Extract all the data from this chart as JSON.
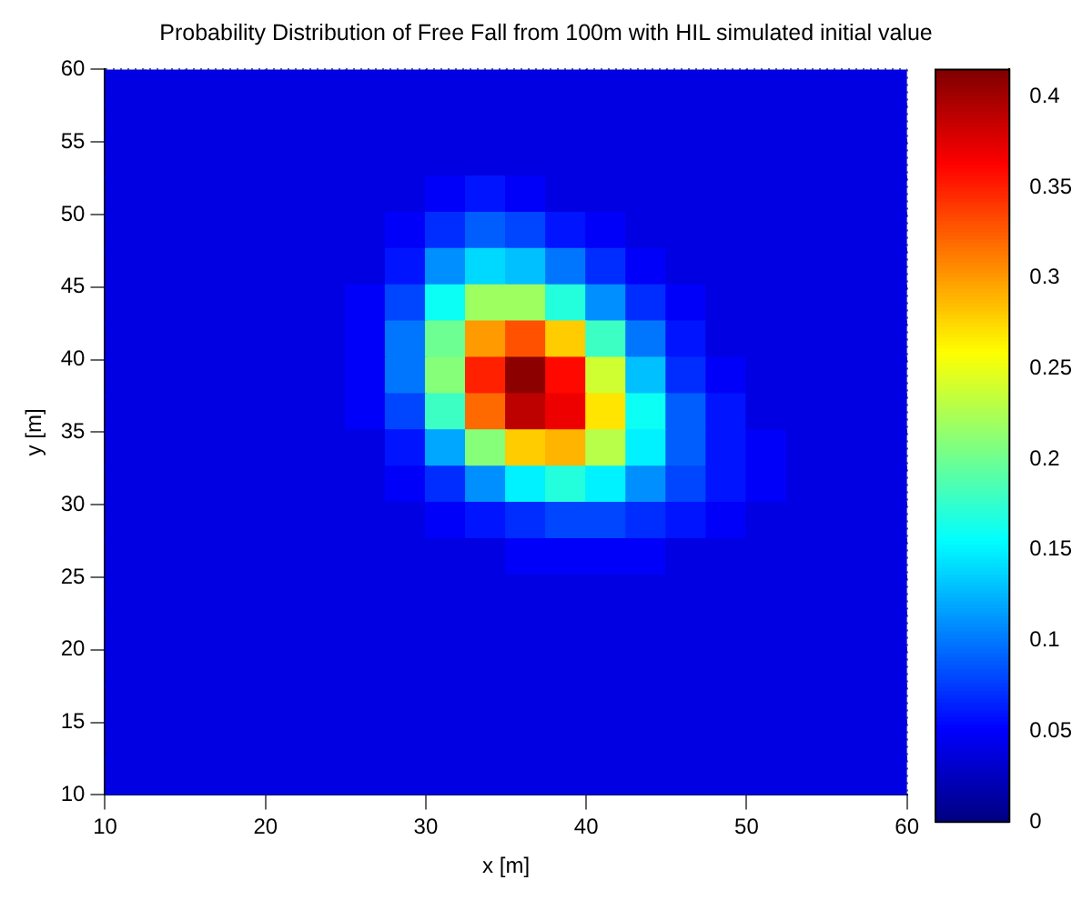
{
  "chart_data": {
    "type": "scatter",
    "title": "Probability Distribution of Free Fall from 100m with HIL simulated initial value",
    "xlabel": "x [m]",
    "ylabel": "y [m]",
    "marker": "square",
    "xlim": [
      10,
      60
    ],
    "xticks": [
      10,
      20,
      30,
      40,
      50,
      60
    ],
    "ylim": [
      10,
      60
    ],
    "yticks": [
      10,
      15,
      20,
      25,
      30,
      35,
      40,
      45,
      50,
      55,
      60
    ],
    "grid": true,
    "clim": [
      0,
      0.415
    ],
    "cticks": [
      0,
      0.05,
      0.1,
      0.15,
      0.2,
      0.25,
      0.3,
      0.35,
      0.4
    ],
    "x": [
      11.25,
      13.75,
      16.25,
      18.75,
      21.25,
      23.75,
      26.25,
      28.75,
      31.25,
      33.75,
      36.25,
      38.75,
      41.25,
      43.75,
      46.25,
      48.75,
      51.25,
      53.75,
      56.25,
      58.75,
      11.25,
      13.75,
      16.25,
      18.75,
      21.25,
      23.75,
      26.25,
      28.75,
      31.25,
      33.75,
      36.25,
      38.75,
      41.25,
      43.75,
      46.25,
      48.75,
      51.25,
      53.75,
      56.25,
      58.75,
      11.25,
      13.75,
      16.25,
      18.75,
      21.25,
      23.75,
      26.25,
      28.75,
      31.25,
      33.75,
      36.25,
      38.75,
      41.25,
      43.75,
      46.25,
      48.75,
      51.25,
      53.75,
      56.25,
      58.75,
      11.25,
      13.75,
      16.25,
      18.75,
      21.25,
      23.75,
      26.25,
      28.75,
      31.25,
      33.75,
      36.25,
      38.75,
      41.25,
      43.75,
      46.25,
      48.75,
      51.25,
      53.75,
      56.25,
      58.75,
      11.25,
      13.75,
      16.25,
      18.75,
      21.25,
      23.75,
      26.25,
      28.75,
      31.25,
      33.75,
      36.25,
      38.75,
      41.25,
      43.75,
      46.25,
      48.75,
      51.25,
      53.75,
      56.25,
      58.75,
      11.25,
      13.75,
      16.25,
      18.75,
      21.25,
      23.75,
      26.25,
      28.75,
      31.25,
      33.75,
      36.25,
      38.75,
      41.25,
      43.75,
      46.25,
      48.75,
      51.25,
      53.75,
      56.25,
      58.75,
      11.25,
      13.75,
      16.25,
      18.75,
      21.25,
      23.75,
      26.25,
      28.75,
      31.25,
      33.75,
      36.25,
      38.75,
      41.25,
      43.75,
      46.25,
      48.75,
      51.25,
      53.75,
      56.25,
      58.75,
      11.25,
      13.75,
      16.25,
      18.75,
      21.25,
      23.75,
      26.25,
      28.75,
      31.25,
      33.75,
      36.25,
      38.75,
      41.25,
      43.75,
      46.25,
      48.75,
      51.25,
      53.75,
      56.25,
      58.75,
      11.25,
      13.75,
      16.25,
      18.75,
      21.25,
      23.75,
      26.25,
      28.75,
      31.25,
      33.75,
      36.25,
      38.75,
      41.25,
      43.75,
      46.25,
      48.75,
      51.25,
      53.75,
      56.25,
      58.75,
      11.25,
      13.75,
      16.25,
      18.75,
      21.25,
      23.75,
      26.25,
      28.75,
      31.25,
      33.75,
      36.25,
      38.75,
      41.25,
      43.75,
      46.25,
      48.75,
      51.25,
      53.75,
      56.25,
      58.75,
      11.25,
      13.75,
      16.25,
      18.75,
      21.25,
      23.75,
      26.25,
      28.75,
      31.25,
      33.75,
      36.25,
      38.75,
      41.25,
      43.75,
      46.25,
      48.75,
      51.25,
      53.75,
      56.25,
      58.75,
      11.25,
      13.75,
      16.25,
      18.75,
      21.25,
      23.75,
      26.25,
      28.75,
      31.25,
      33.75,
      36.25,
      38.75,
      41.25,
      43.75,
      46.25,
      48.75,
      51.25,
      53.75,
      56.25,
      58.75,
      11.25,
      13.75,
      16.25,
      18.75,
      21.25,
      23.75,
      26.25,
      28.75,
      31.25,
      33.75,
      36.25,
      38.75,
      41.25,
      43.75,
      46.25,
      48.75,
      51.25,
      53.75,
      56.25,
      58.75,
      11.25,
      13.75,
      16.25,
      18.75,
      21.25,
      23.75,
      26.25,
      28.75,
      31.25,
      33.75,
      36.25,
      38.75,
      41.25,
      43.75,
      46.25,
      48.75,
      51.25,
      53.75,
      56.25,
      58.75,
      11.25,
      13.75,
      16.25,
      18.75,
      21.25,
      23.75,
      26.25,
      28.75,
      31.25,
      33.75,
      36.25,
      38.75,
      41.25,
      43.75,
      46.25,
      48.75,
      51.25,
      53.75,
      56.25,
      58.75,
      11.25,
      13.75,
      16.25,
      18.75,
      21.25,
      23.75,
      26.25,
      28.75,
      31.25,
      33.75,
      36.25,
      38.75,
      41.25,
      43.75,
      46.25,
      48.75,
      51.25,
      53.75,
      56.25,
      58.75,
      11.25,
      13.75,
      16.25,
      18.75,
      21.25,
      23.75,
      26.25,
      28.75,
      31.25,
      33.75,
      36.25,
      38.75,
      41.25,
      43.75,
      46.25,
      48.75,
      51.25,
      53.75,
      56.25,
      58.75,
      11.25,
      13.75,
      16.25,
      18.75,
      21.25,
      23.75,
      26.25,
      28.75,
      31.25,
      33.75,
      36.25,
      38.75,
      41.25,
      43.75,
      46.25,
      48.75,
      51.25,
      53.75,
      56.25,
      58.75,
      11.25,
      13.75,
      16.25,
      18.75,
      21.25,
      23.75,
      26.25,
      28.75,
      31.25,
      33.75,
      36.25,
      38.75,
      41.25,
      43.75,
      46.25,
      48.75,
      51.25,
      53.75,
      56.25,
      58.75,
      11.25,
      13.75,
      16.25,
      18.75,
      21.25,
      23.75,
      26.25,
      28.75,
      31.25,
      33.75,
      36.25,
      38.75,
      41.25,
      43.75,
      46.25,
      48.75,
      51.25,
      53.75,
      56.25,
      58.75
    ],
    "values": [
      58.75,
      58.75,
      58.75,
      58.75,
      58.75,
      58.75,
      58.75,
      58.75,
      58.75,
      58.75,
      58.75,
      58.75,
      58.75,
      58.75,
      58.75,
      58.75,
      58.75,
      58.75,
      58.75,
      58.75,
      56.25,
      56.25,
      56.25,
      56.25,
      56.25,
      56.25,
      56.25,
      56.25,
      56.25,
      56.25,
      56.25,
      56.25,
      56.25,
      56.25,
      56.25,
      56.25,
      56.25,
      56.25,
      56.25,
      56.25,
      53.75,
      53.75,
      53.75,
      53.75,
      53.75,
      53.75,
      53.75,
      53.75,
      53.75,
      53.75,
      53.75,
      53.75,
      53.75,
      53.75,
      53.75,
      53.75,
      53.75,
      53.75,
      53.75,
      53.75,
      51.25,
      51.25,
      51.25,
      51.25,
      51.25,
      51.25,
      51.25,
      51.25,
      51.25,
      51.25,
      51.25,
      51.25,
      51.25,
      51.25,
      51.25,
      51.25,
      51.25,
      51.25,
      51.25,
      51.25,
      48.75,
      48.75,
      48.75,
      48.75,
      48.75,
      48.75,
      48.75,
      48.75,
      48.75,
      48.75,
      48.75,
      48.75,
      48.75,
      48.75,
      48.75,
      48.75,
      48.75,
      48.75,
      48.75,
      48.75,
      46.25,
      46.25,
      46.25,
      46.25,
      46.25,
      46.25,
      46.25,
      46.25,
      46.25,
      46.25,
      46.25,
      46.25,
      46.25,
      46.25,
      46.25,
      46.25,
      46.25,
      46.25,
      46.25,
      46.25,
      43.75,
      43.75,
      43.75,
      43.75,
      43.75,
      43.75,
      43.75,
      43.75,
      43.75,
      43.75,
      43.75,
      43.75,
      43.75,
      43.75,
      43.75,
      43.75,
      43.75,
      43.75,
      43.75,
      43.75,
      41.25,
      41.25,
      41.25,
      41.25,
      41.25,
      41.25,
      41.25,
      41.25,
      41.25,
      41.25,
      41.25,
      41.25,
      41.25,
      41.25,
      41.25,
      41.25,
      41.25,
      41.25,
      41.25,
      41.25,
      38.75,
      38.75,
      38.75,
      38.75,
      38.75,
      38.75,
      38.75,
      38.75,
      38.75,
      38.75,
      38.75,
      38.75,
      38.75,
      38.75,
      38.75,
      38.75,
      38.75,
      38.75,
      38.75,
      38.75,
      36.25,
      36.25,
      36.25,
      36.25,
      36.25,
      36.25,
      36.25,
      36.25,
      36.25,
      36.25,
      36.25,
      36.25,
      36.25,
      36.25,
      36.25,
      36.25,
      36.25,
      36.25,
      36.25,
      36.25,
      33.75,
      33.75,
      33.75,
      33.75,
      33.75,
      33.75,
      33.75,
      33.75,
      33.75,
      33.75,
      33.75,
      33.75,
      33.75,
      33.75,
      33.75,
      33.75,
      33.75,
      33.75,
      33.75,
      33.75,
      31.25,
      31.25,
      31.25,
      31.25,
      31.25,
      31.25,
      31.25,
      31.25,
      31.25,
      31.25,
      31.25,
      31.25,
      31.25,
      31.25,
      31.25,
      31.25,
      31.25,
      31.25,
      31.25,
      31.25,
      28.75,
      28.75,
      28.75,
      28.75,
      28.75,
      28.75,
      28.75,
      28.75,
      28.75,
      28.75,
      28.75,
      28.75,
      28.75,
      28.75,
      28.75,
      28.75,
      28.75,
      28.75,
      28.75,
      28.75,
      26.25,
      26.25,
      26.25,
      26.25,
      26.25,
      26.25,
      26.25,
      26.25,
      26.25,
      26.25,
      26.25,
      26.25,
      26.25,
      26.25,
      26.25,
      26.25,
      26.25,
      26.25,
      26.25,
      26.25,
      23.75,
      23.75,
      23.75,
      23.75,
      23.75,
      23.75,
      23.75,
      23.75,
      23.75,
      23.75,
      23.75,
      23.75,
      23.75,
      23.75,
      23.75,
      23.75,
      23.75,
      23.75,
      23.75,
      23.75,
      21.25,
      21.25,
      21.25,
      21.25,
      21.25,
      21.25,
      21.25,
      21.25,
      21.25,
      21.25,
      21.25,
      21.25,
      21.25,
      21.25,
      21.25,
      21.25,
      21.25,
      21.25,
      21.25,
      21.25,
      18.75,
      18.75,
      18.75,
      18.75,
      18.75,
      18.75,
      18.75,
      18.75,
      18.75,
      18.75,
      18.75,
      18.75,
      18.75,
      18.75,
      18.75,
      18.75,
      18.75,
      18.75,
      18.75,
      18.75,
      16.25,
      16.25,
      16.25,
      16.25,
      16.25,
      16.25,
      16.25,
      16.25,
      16.25,
      16.25,
      16.25,
      16.25,
      16.25,
      16.25,
      16.25,
      16.25,
      16.25,
      16.25,
      16.25,
      16.25,
      13.75,
      13.75,
      13.75,
      13.75,
      13.75,
      13.75,
      13.75,
      13.75,
      13.75,
      13.75,
      13.75,
      13.75,
      13.75,
      13.75,
      13.75,
      13.75,
      13.75,
      13.75,
      13.75,
      13.75,
      11.25,
      11.25,
      11.25,
      11.25,
      11.25,
      11.25,
      11.25,
      11.25,
      11.25,
      11.25,
      11.25,
      11.25,
      11.25,
      11.25,
      11.25,
      11.25,
      11.25,
      11.25,
      11.25,
      11.25
    ],
    "cvalues": [
      0.04,
      0.04,
      0.04,
      0.04,
      0.04,
      0.04,
      0.04,
      0.04,
      0.04,
      0.04,
      0.04,
      0.04,
      0.04,
      0.04,
      0.04,
      0.04,
      0.04,
      0.04,
      0.04,
      0.04,
      0.04,
      0.04,
      0.04,
      0.04,
      0.04,
      0.04,
      0.04,
      0.04,
      0.04,
      0.04,
      0.04,
      0.04,
      0.04,
      0.04,
      0.04,
      0.04,
      0.04,
      0.04,
      0.04,
      0.04,
      0.04,
      0.04,
      0.04,
      0.04,
      0.04,
      0.04,
      0.04,
      0.04,
      0.04,
      0.04,
      0.04,
      0.04,
      0.04,
      0.04,
      0.04,
      0.04,
      0.04,
      0.04,
      0.04,
      0.04,
      0.04,
      0.04,
      0.04,
      0.04,
      0.04,
      0.04,
      0.04,
      0.04,
      0.05,
      0.06,
      0.05,
      0.04,
      0.04,
      0.04,
      0.04,
      0.04,
      0.04,
      0.04,
      0.04,
      0.04,
      0.04,
      0.04,
      0.04,
      0.04,
      0.04,
      0.04,
      0.04,
      0.05,
      0.07,
      0.09,
      0.08,
      0.06,
      0.05,
      0.04,
      0.04,
      0.04,
      0.04,
      0.04,
      0.04,
      0.04,
      0.04,
      0.04,
      0.04,
      0.04,
      0.04,
      0.04,
      0.04,
      0.06,
      0.11,
      0.14,
      0.13,
      0.1,
      0.07,
      0.05,
      0.04,
      0.04,
      0.04,
      0.04,
      0.04,
      0.04,
      0.04,
      0.04,
      0.04,
      0.04,
      0.04,
      0.04,
      0.05,
      0.08,
      0.16,
      0.22,
      0.22,
      0.17,
      0.11,
      0.07,
      0.05,
      0.04,
      0.04,
      0.04,
      0.04,
      0.04,
      0.04,
      0.04,
      0.04,
      0.04,
      0.04,
      0.04,
      0.05,
      0.1,
      0.2,
      0.3,
      0.33,
      0.28,
      0.18,
      0.1,
      0.06,
      0.04,
      0.04,
      0.04,
      0.04,
      0.04,
      0.04,
      0.04,
      0.04,
      0.04,
      0.04,
      0.04,
      0.05,
      0.1,
      0.21,
      0.35,
      0.41,
      0.36,
      0.24,
      0.13,
      0.07,
      0.05,
      0.04,
      0.04,
      0.04,
      0.04,
      0.04,
      0.04,
      0.04,
      0.04,
      0.04,
      0.04,
      0.05,
      0.08,
      0.18,
      0.32,
      0.39,
      0.37,
      0.27,
      0.16,
      0.09,
      0.06,
      0.04,
      0.04,
      0.04,
      0.04,
      0.04,
      0.04,
      0.04,
      0.04,
      0.04,
      0.04,
      0.04,
      0.06,
      0.12,
      0.21,
      0.28,
      0.29,
      0.23,
      0.15,
      0.09,
      0.06,
      0.05,
      0.04,
      0.04,
      0.04,
      0.04,
      0.04,
      0.04,
      0.04,
      0.04,
      0.04,
      0.04,
      0.05,
      0.07,
      0.11,
      0.15,
      0.17,
      0.15,
      0.11,
      0.08,
      0.06,
      0.05,
      0.04,
      0.04,
      0.04,
      0.04,
      0.04,
      0.04,
      0.04,
      0.04,
      0.04,
      0.04,
      0.04,
      0.05,
      0.06,
      0.07,
      0.08,
      0.08,
      0.07,
      0.06,
      0.05,
      0.04,
      0.04,
      0.04,
      0.04,
      0.04,
      0.04,
      0.04,
      0.04,
      0.04,
      0.04,
      0.04,
      0.04,
      0.04,
      0.04,
      0.05,
      0.05,
      0.05,
      0.05,
      0.04,
      0.04,
      0.04,
      0.04,
      0.04,
      0.04,
      0.04,
      0.04,
      0.04,
      0.04,
      0.04,
      0.04,
      0.04,
      0.04,
      0.04,
      0.04,
      0.04,
      0.04,
      0.04,
      0.04,
      0.04,
      0.04,
      0.04,
      0.04,
      0.04,
      0.04,
      0.04,
      0.04,
      0.04,
      0.04,
      0.04,
      0.04,
      0.04,
      0.04,
      0.04,
      0.04,
      0.04,
      0.04,
      0.04,
      0.04,
      0.04,
      0.04,
      0.04,
      0.04,
      0.04,
      0.04,
      0.04,
      0.04,
      0.04,
      0.04,
      0.04,
      0.04,
      0.04,
      0.04,
      0.04,
      0.04,
      0.04,
      0.04,
      0.04,
      0.04,
      0.04,
      0.04,
      0.04,
      0.04,
      0.04,
      0.04,
      0.04,
      0.04,
      0.04,
      0.04,
      0.04,
      0.04,
      0.04,
      0.04,
      0.04,
      0.04,
      0.04,
      0.04,
      0.04,
      0.04,
      0.04,
      0.04,
      0.04,
      0.04,
      0.04,
      0.04,
      0.04,
      0.04,
      0.04,
      0.04,
      0.04,
      0.04,
      0.04,
      0.04,
      0.04,
      0.04,
      0.04,
      0.04,
      0.04,
      0.04,
      0.04,
      0.04,
      0.04,
      0.04,
      0.04,
      0.04,
      0.04,
      0.04,
      0.04,
      0.04,
      0.04,
      0.04,
      0.04,
      0.04,
      0.04,
      0.04,
      0.04,
      0.04,
      0.04,
      0.04,
      0.04,
      0.04,
      0.04,
      0.04,
      0.04,
      0.04
    ]
  }
}
